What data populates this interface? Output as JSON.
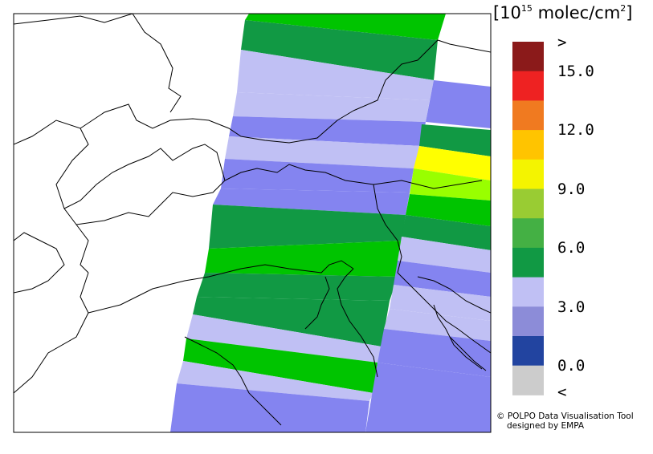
{
  "legend": {
    "unit_prefix": "[10",
    "unit_exponent": "15",
    "unit_suffix": " molec/cm",
    "unit_power": "2",
    "unit_close": "]",
    "labels": [
      ">",
      "15.0",
      "12.0",
      "9.0",
      "6.0",
      "3.0",
      "0.0",
      "<"
    ],
    "colors": [
      "#8b1a1a",
      "#ee2222",
      "#f07a20",
      "#ffc400",
      "#f4f400",
      "#99cc33",
      "#44b044",
      "#119944",
      "#c0c0f4",
      "#8c8cd8",
      "#2244a0",
      "#cccccc"
    ]
  },
  "credits": {
    "line1": "© POLPO Data Visualisation Tool",
    "line2": "designed by EMPA"
  },
  "map_colors": {
    "bright_green": "#00c400",
    "dark_green": "#119944",
    "lavender": "#c0c0f4",
    "blue_violet": "#8484f0",
    "yellow": "#ffff00",
    "yellow_green": "#99ff00"
  }
}
